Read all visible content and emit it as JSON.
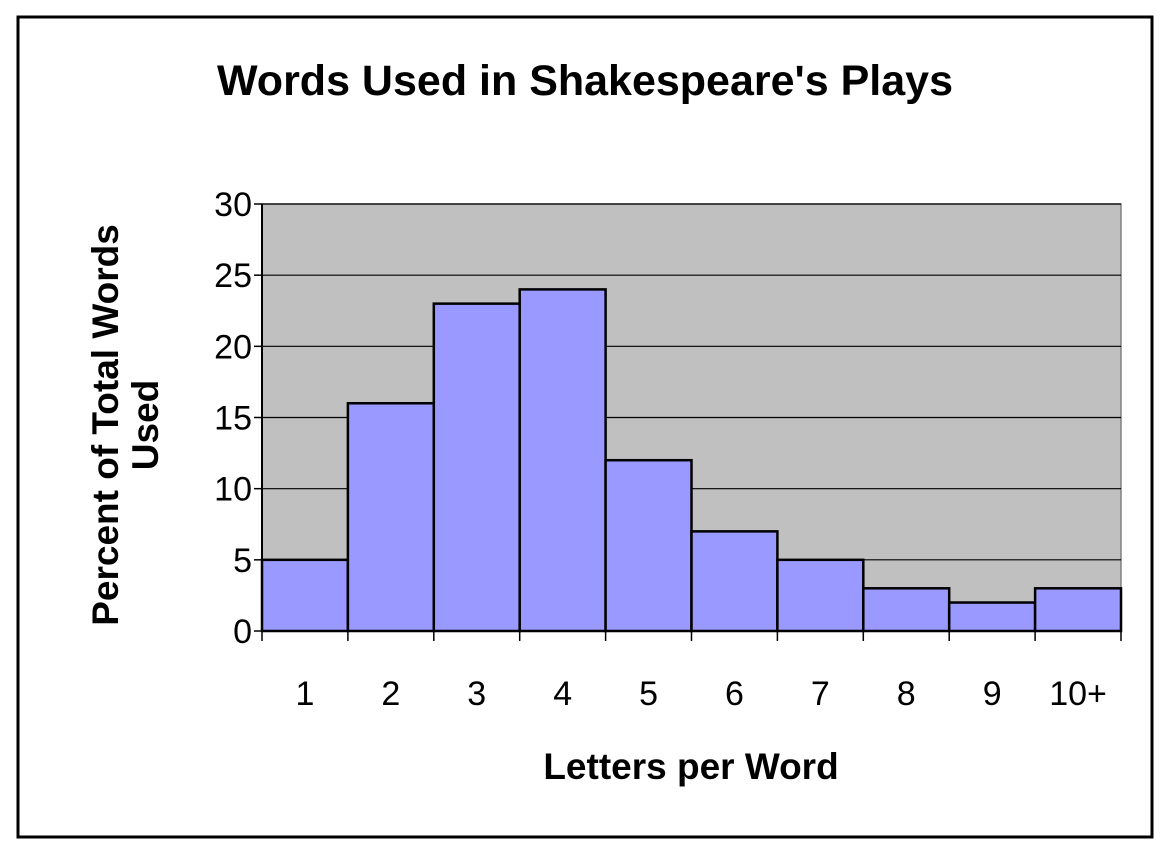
{
  "colors": {
    "bar_fill": "#9999ff",
    "plot_background": "#c0c0c0",
    "border": "#000000",
    "page_background": "#ffffff"
  },
  "chart_data": {
    "type": "bar",
    "title": "Words Used in Shakespeare's Plays",
    "xlabel": "Letters per Word",
    "ylabel_lines": [
      "Percent of Total Words",
      "Used"
    ],
    "categories": [
      "1",
      "2",
      "3",
      "4",
      "5",
      "6",
      "7",
      "8",
      "9",
      "10+"
    ],
    "values": [
      5,
      16,
      23,
      24,
      12,
      7,
      5,
      3,
      2,
      3
    ],
    "ylim": [
      0,
      30
    ],
    "yticks": [
      "0",
      "5",
      "10",
      "15",
      "20",
      "25",
      "30"
    ],
    "grid": true,
    "legend": "none"
  }
}
